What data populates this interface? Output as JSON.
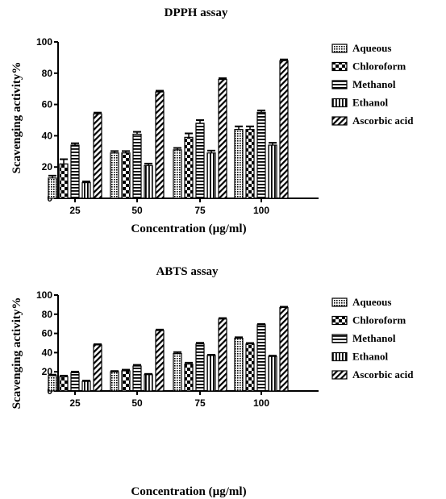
{
  "chart_data": [
    {
      "type": "bar",
      "title": "DPPH assay",
      "xlabel": "Concentration (µg/ml)",
      "ylabel": "Scavenging activity%",
      "ylim": [
        0,
        100
      ],
      "yticks": [
        "0",
        "20",
        "40",
        "60",
        "80",
        "100"
      ],
      "categories": [
        "25",
        "50",
        "75",
        "100"
      ],
      "legend_position": "right",
      "grid": false,
      "series": [
        {
          "name": "Aqueous",
          "pattern": "dots",
          "values": [
            13,
            29,
            31,
            44
          ],
          "errors": [
            1.5,
            1.2,
            1.2,
            2
          ]
        },
        {
          "name": "Chloroform",
          "pattern": "checker",
          "values": [
            22,
            29,
            39,
            44
          ],
          "errors": [
            3,
            1.2,
            2.5,
            2
          ]
        },
        {
          "name": "Methanol",
          "pattern": "hlines",
          "values": [
            34,
            41,
            48,
            55
          ],
          "errors": [
            1.2,
            1.5,
            2,
            1.2
          ]
        },
        {
          "name": "Ethanol",
          "pattern": "vlines",
          "values": [
            10,
            21,
            29,
            34
          ],
          "errors": [
            0.8,
            1.2,
            1.5,
            1.5
          ]
        },
        {
          "name": "Ascorbic acid",
          "pattern": "diagonal",
          "values": [
            54,
            68,
            76,
            88
          ],
          "errors": [
            0.8,
            0.8,
            0.8,
            0.8
          ]
        }
      ]
    },
    {
      "type": "bar",
      "title": "ABTS assay",
      "xlabel": "Concentration (µg/ml)",
      "ylabel": "Scavenging activity%",
      "ylim": [
        0,
        100
      ],
      "yticks": [
        "0",
        "20",
        "40",
        "60",
        "80",
        "100"
      ],
      "categories": [
        "25",
        "50",
        "75",
        "100"
      ],
      "legend_position": "right",
      "grid": false,
      "series": [
        {
          "name": "Aqueous",
          "pattern": "dots",
          "values": [
            16,
            20,
            39,
            55
          ],
          "errors": [
            1,
            0.8,
            1.5,
            1
          ]
        },
        {
          "name": "Chloroform",
          "pattern": "checker",
          "values": [
            15,
            21,
            28,
            49
          ],
          "errors": [
            1,
            1.2,
            1.5,
            1
          ]
        },
        {
          "name": "Methanol",
          "pattern": "hlines",
          "values": [
            19,
            26,
            49,
            69
          ],
          "errors": [
            1.2,
            1.2,
            1.2,
            0.8
          ]
        },
        {
          "name": "Ethanol",
          "pattern": "vlines",
          "values": [
            10,
            17,
            37,
            36
          ],
          "errors": [
            0.8,
            0.8,
            0.8,
            0.8
          ]
        },
        {
          "name": "Ascorbic acid",
          "pattern": "diagonal",
          "values": [
            48,
            63,
            75,
            87
          ],
          "errors": [
            0.8,
            1,
            1,
            0.8
          ]
        }
      ]
    }
  ]
}
